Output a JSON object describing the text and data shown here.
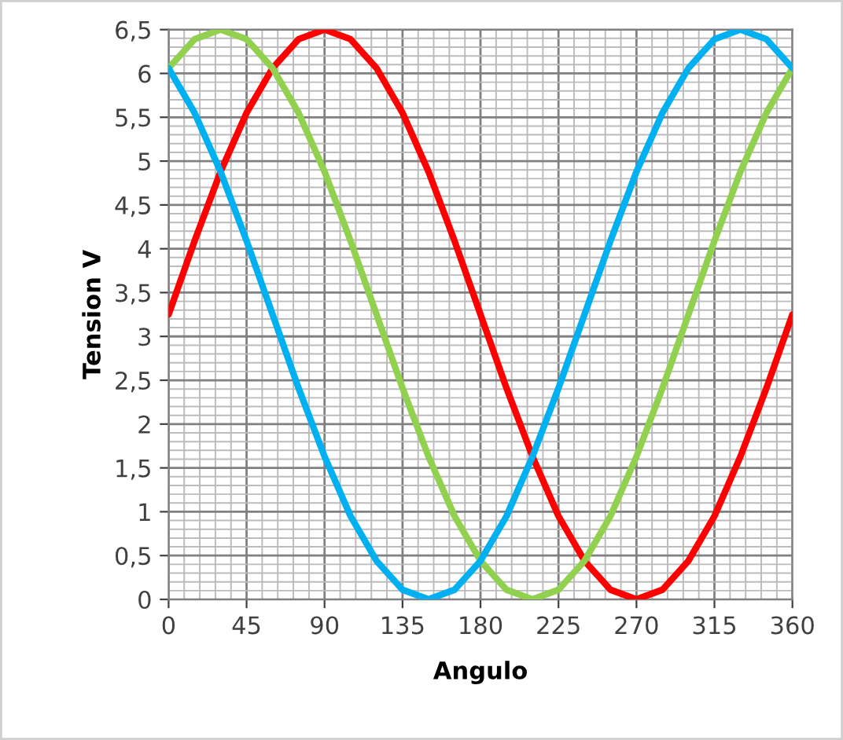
{
  "chart_data": {
    "type": "line",
    "xlabel": "Angulo",
    "ylabel": "Tension V",
    "x": [
      0,
      15,
      30,
      45,
      60,
      75,
      90,
      105,
      120,
      135,
      150,
      165,
      180,
      195,
      210,
      225,
      240,
      255,
      270,
      285,
      300,
      315,
      330,
      345,
      360
    ],
    "series": [
      {
        "color": "#ff0000",
        "values": [
          3.25,
          4.09,
          4.88,
          5.55,
          6.06,
          6.39,
          6.5,
          6.39,
          6.06,
          5.55,
          4.88,
          4.09,
          3.25,
          2.41,
          1.63,
          0.95,
          0.44,
          0.11,
          0,
          0.11,
          0.44,
          0.95,
          1.63,
          2.41,
          3.25
        ]
      },
      {
        "color": "#92d050",
        "values": [
          6.06,
          6.39,
          6.5,
          6.39,
          6.06,
          5.55,
          4.88,
          4.09,
          3.25,
          2.41,
          1.63,
          0.95,
          0.44,
          0.11,
          0,
          0.11,
          0.44,
          0.95,
          1.63,
          2.41,
          3.25,
          4.09,
          4.88,
          5.55,
          6.06
        ]
      },
      {
        "color": "#00b0f0",
        "values": [
          6.06,
          5.55,
          4.88,
          4.09,
          3.25,
          2.41,
          1.63,
          0.95,
          0.44,
          0.11,
          0,
          0.11,
          0.44,
          0.95,
          1.63,
          2.41,
          3.25,
          4.09,
          4.88,
          5.55,
          6.06,
          6.39,
          6.5,
          6.39,
          6.06
        ]
      }
    ],
    "xlim": [
      0,
      360
    ],
    "xticks": [
      0,
      45,
      90,
      135,
      180,
      225,
      270,
      315,
      360
    ],
    "ylim": [
      0,
      6.5
    ],
    "yticks": [
      0,
      {
        "value": 0.5,
        "label": "0,5"
      },
      1,
      {
        "value": 1.5,
        "label": "1,5"
      },
      2,
      {
        "value": 2.5,
        "label": "2,5"
      },
      3,
      {
        "value": 3.5,
        "label": "3,5"
      },
      4,
      {
        "value": 4.5,
        "label": "4,5"
      },
      5,
      {
        "value": 5.5,
        "label": "5,5"
      },
      6,
      {
        "value": 6.5,
        "label": "6,5"
      }
    ],
    "grid": true,
    "legend": false,
    "marker": "none",
    "line_style": "solid"
  }
}
